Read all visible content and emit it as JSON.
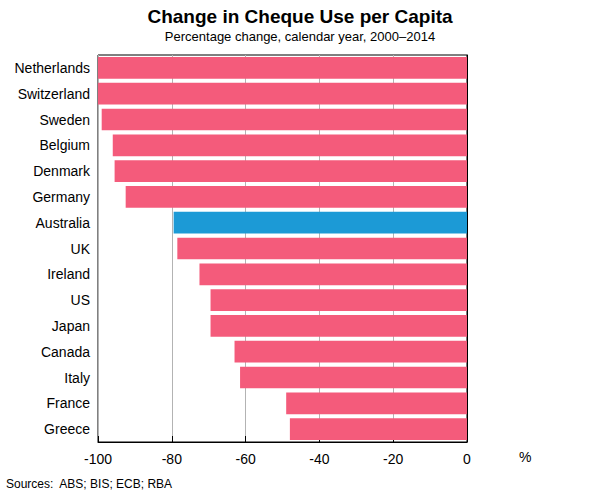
{
  "chart_data": {
    "type": "bar",
    "orientation": "horizontal",
    "title": "Change in Cheque Use per Capita",
    "subtitle": "Percentage change, calendar year, 2000–2014",
    "categories": [
      "Netherlands",
      "Switzerland",
      "Sweden",
      "Belgium",
      "Denmark",
      "Germany",
      "Australia",
      "UK",
      "Ireland",
      "US",
      "Japan",
      "Canada",
      "Italy",
      "France",
      "Greece"
    ],
    "values": [
      -100,
      -100,
      -99,
      -96,
      -95.5,
      -92.5,
      -79.5,
      -78.5,
      -72.5,
      -69.5,
      -69.5,
      -63,
      -61.5,
      -49,
      -48
    ],
    "colors": [
      "#f45b7b",
      "#f45b7b",
      "#f45b7b",
      "#f45b7b",
      "#f45b7b",
      "#f45b7b",
      "#1c9ad6",
      "#f45b7b",
      "#f45b7b",
      "#f45b7b",
      "#f45b7b",
      "#f45b7b",
      "#f45b7b",
      "#f45b7b",
      "#f45b7b"
    ],
    "xlabel": "%",
    "xlim": [
      -100,
      0
    ],
    "xticks": [
      -100,
      -80,
      -60,
      -40,
      -20,
      0
    ],
    "grid": true,
    "source": "Sources:  ABS; BIS; ECB; RBA"
  }
}
